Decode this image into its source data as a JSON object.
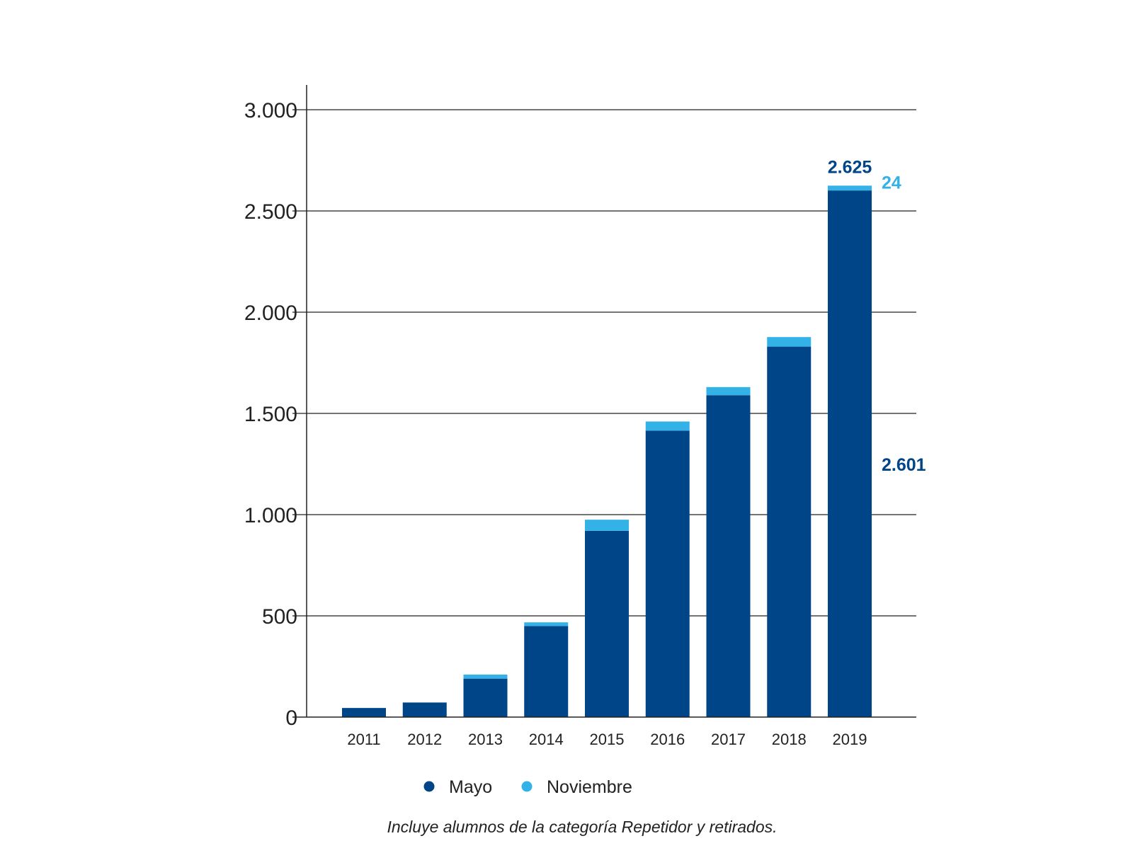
{
  "colors": {
    "mayo": "#004587",
    "noviembre": "#33b2e8",
    "grid": "#222222",
    "axis": "#222222"
  },
  "chart_data": {
    "type": "bar",
    "stacked": true,
    "categories": [
      "2011",
      "2012",
      "2013",
      "2014",
      "2015",
      "2016",
      "2017",
      "2018",
      "2019"
    ],
    "series": [
      {
        "name": "Mayo",
        "values": [
          45,
          72,
          190,
          450,
          920,
          1415,
          1590,
          1830,
          2601
        ]
      },
      {
        "name": "Noviembre",
        "values": [
          0,
          0,
          20,
          18,
          55,
          45,
          40,
          47,
          24
        ]
      }
    ],
    "ylim": [
      0,
      3000
    ],
    "yticks": [
      0,
      500,
      1000,
      1500,
      2000,
      2500,
      3000
    ],
    "ytick_labels": [
      "0",
      "500",
      "1.000",
      "1.500",
      "2.000",
      "2.500",
      "3.000"
    ],
    "grid": true,
    "legend_position": "bottom",
    "annotations": [
      {
        "category": "2019",
        "text": "2.625",
        "kind": "total"
      },
      {
        "category": "2019",
        "text": "24",
        "kind": "noviembre"
      },
      {
        "category": "2019",
        "text": "2.601",
        "kind": "mayo"
      }
    ],
    "footnote": "Incluye alumnos de la categoría Repetidor y retirados."
  }
}
